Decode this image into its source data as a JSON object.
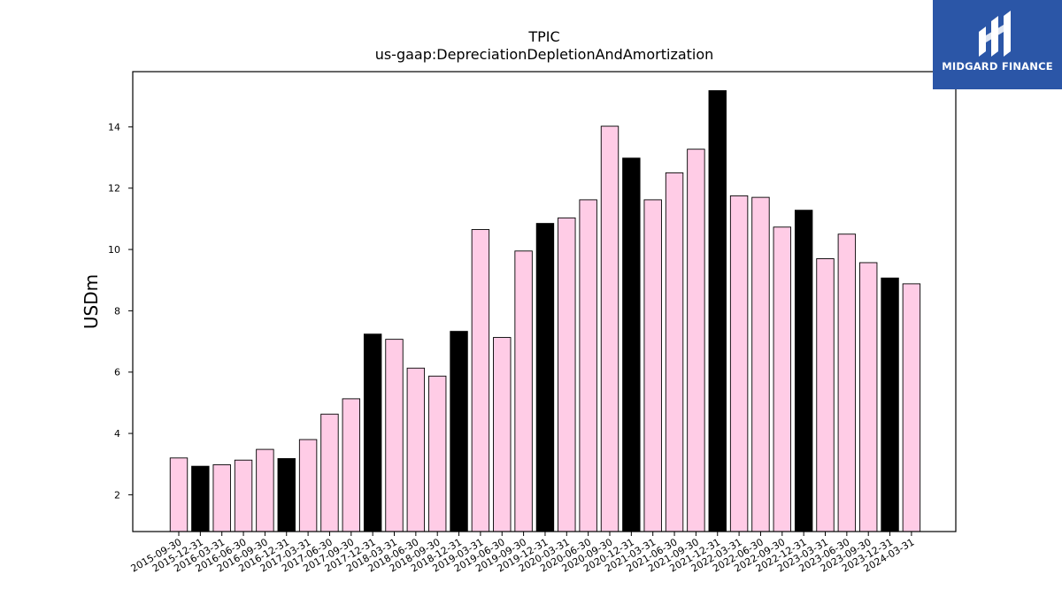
{
  "logo": {
    "text": "MIDGARD FINANCE",
    "icon": "midgard-m-icon",
    "bg": "#2b56a7"
  },
  "chart_data": {
    "type": "bar",
    "title": "TPIC",
    "subtitle": "us-gaap:DepreciationDepletionAndAmortization",
    "xlabel": "",
    "ylabel": "USDm",
    "ylim": [
      0.8,
      15.8
    ],
    "yticks": [
      2,
      4,
      6,
      8,
      10,
      12,
      14
    ],
    "grid": false,
    "categories": [
      "2015-09-30",
      "2015-12-31",
      "2016-03-31",
      "2016-06-30",
      "2016-09-30",
      "2016-12-31",
      "2017-03-31",
      "2017-06-30",
      "2017-09-30",
      "2017-12-31",
      "2018-03-31",
      "2018-06-30",
      "2018-09-30",
      "2018-12-31",
      "2019-03-31",
      "2019-06-30",
      "2019-09-30",
      "2019-12-31",
      "2020-03-31",
      "2020-06-30",
      "2020-09-30",
      "2020-12-31",
      "2021-03-31",
      "2021-06-30",
      "2021-09-30",
      "2021-12-31",
      "2022-03-31",
      "2022-06-30",
      "2022-09-30",
      "2022-12-31",
      "2023-03-31",
      "2023-06-30",
      "2023-09-30",
      "2023-12-31",
      "2024-03-31"
    ],
    "values": [
      3.2,
      2.93,
      2.98,
      3.13,
      3.48,
      3.18,
      3.8,
      4.63,
      5.13,
      7.24,
      7.07,
      6.13,
      5.87,
      7.33,
      10.65,
      7.13,
      9.95,
      10.85,
      11.03,
      11.62,
      14.02,
      12.98,
      11.62,
      12.5,
      13.27,
      15.18,
      11.75,
      11.7,
      10.73,
      11.28,
      9.7,
      10.5,
      9.57,
      9.07,
      8.88
    ],
    "highlight": [
      false,
      true,
      false,
      false,
      false,
      true,
      false,
      false,
      false,
      true,
      false,
      false,
      false,
      true,
      false,
      false,
      false,
      true,
      false,
      false,
      false,
      true,
      false,
      false,
      false,
      true,
      false,
      false,
      false,
      true,
      false,
      false,
      false,
      true,
      false
    ],
    "colors": {
      "normal": "#ffcce6",
      "highlight": "#000000",
      "edge": "#000000"
    }
  }
}
